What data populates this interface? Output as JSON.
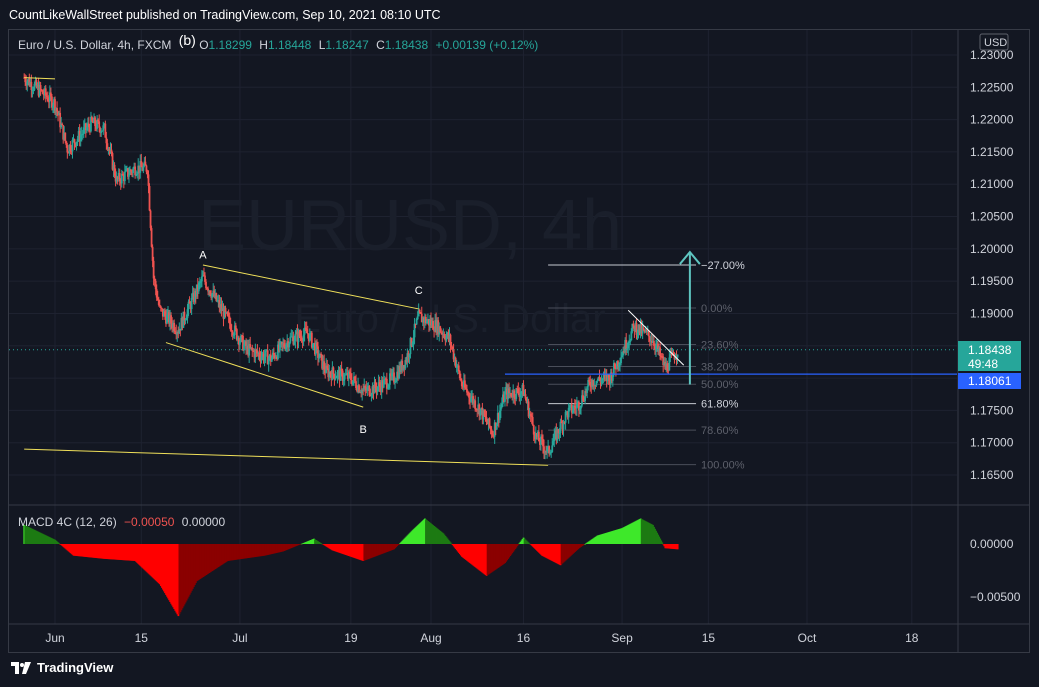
{
  "publisher_line": "CountLikeWallStreet published on TradingView.com, Sep 10, 2021 08:10 UTC",
  "legend": {
    "symbol": "Euro / U.S. Dollar, 4h, FXCM",
    "open_label": "O",
    "open": "1.18299",
    "high_label": "H",
    "high": "1.18448",
    "low_label": "L",
    "low": "1.18247",
    "close_label": "C",
    "close": "1.18438",
    "change": "+0.00139 (+0.12%)",
    "wave_label": "(b)"
  },
  "watermark": {
    "line1": "EURUSD, 4h",
    "line2": "Euro / U.S. Dollar"
  },
  "currency": "USD",
  "price_tags": {
    "last": "1.18438",
    "countdown": "49:48",
    "hline": "1.18061"
  },
  "macd_legend": {
    "name": "MACD 4C (12, 26)",
    "value1": "−0.00050",
    "value2": "0.00000"
  },
  "footer": {
    "brand": "TradingView"
  },
  "colors": {
    "up": "#26a69a",
    "down": "#ef5350",
    "trend": "#f0e05a",
    "hline": "#2962ff",
    "arrow": "#5ec5c0",
    "macd_bright_green": "#3ee82a",
    "macd_dark_green": "#1d7a12",
    "macd_bright_red": "#ff0000",
    "macd_dark_red": "#8b0000"
  },
  "chart_data": {
    "type": "candlestick",
    "title": "EURUSD, 4h",
    "ylim": [
      1.1625,
      1.2325
    ],
    "y_ticks": [
      "1.16500",
      "1.17000",
      "1.17500",
      "1.18000",
      "1.18500",
      "1.19000",
      "1.19500",
      "1.20000",
      "1.20500",
      "1.21000",
      "1.21500",
      "1.22000",
      "1.22500",
      "1.23000"
    ],
    "x_ticks": [
      "Jun",
      "15",
      "Jul",
      "19",
      "Aug",
      "16",
      "Sep",
      "15",
      "Oct",
      "18"
    ],
    "price_path": [
      {
        "date": "May 27",
        "price": 1.2265
      },
      {
        "date": "Jun 1",
        "price": 1.2225
      },
      {
        "date": "Jun 3",
        "price": 1.2155
      },
      {
        "date": "Jun 7",
        "price": 1.2195
      },
      {
        "date": "Jun 9",
        "price": 1.2185
      },
      {
        "date": "Jun 11",
        "price": 1.2105
      },
      {
        "date": "Jun 14",
        "price": 1.2125
      },
      {
        "date": "Jun 16",
        "price": 1.2125
      },
      {
        "date": "Jun 17",
        "price": 1.1955
      },
      {
        "date": "Jun 18",
        "price": 1.1905
      },
      {
        "date": "Jun 21",
        "price": 1.1875
      },
      {
        "date": "Jun 25",
        "price": 1.1955
      },
      {
        "date": "Jun 29",
        "price": 1.189
      },
      {
        "date": "Jul 2",
        "price": 1.1845
      },
      {
        "date": "Jul 6",
        "price": 1.183
      },
      {
        "date": "Jul 9",
        "price": 1.186
      },
      {
        "date": "Jul 12",
        "price": 1.187
      },
      {
        "date": "Jul 15",
        "price": 1.181
      },
      {
        "date": "Jul 19",
        "price": 1.18
      },
      {
        "date": "Jul 21",
        "price": 1.178
      },
      {
        "date": "Jul 23",
        "price": 1.1785
      },
      {
        "date": "Jul 26",
        "price": 1.18
      },
      {
        "date": "Jul 28",
        "price": 1.183
      },
      {
        "date": "Jul 30",
        "price": 1.1895
      },
      {
        "date": "Aug 2",
        "price": 1.188
      },
      {
        "date": "Aug 4",
        "price": 1.186
      },
      {
        "date": "Aug 6",
        "price": 1.179
      },
      {
        "date": "Aug 9",
        "price": 1.175
      },
      {
        "date": "Aug 11",
        "price": 1.1715
      },
      {
        "date": "Aug 13",
        "price": 1.1775
      },
      {
        "date": "Aug 16",
        "price": 1.178
      },
      {
        "date": "Aug 18",
        "price": 1.171
      },
      {
        "date": "Aug 20",
        "price": 1.1685
      },
      {
        "date": "Aug 23",
        "price": 1.1745
      },
      {
        "date": "Aug 25",
        "price": 1.176
      },
      {
        "date": "Aug 27",
        "price": 1.1795
      },
      {
        "date": "Aug 30",
        "price": 1.18
      },
      {
        "date": "Sep 1",
        "price": 1.184
      },
      {
        "date": "Sep 3",
        "price": 1.188
      },
      {
        "date": "Sep 6",
        "price": 1.186
      },
      {
        "date": "Sep 8",
        "price": 1.1815
      },
      {
        "date": "Sep 10",
        "price": 1.1844
      }
    ],
    "wave_labels": [
      {
        "label": "A",
        "date": "Jun 25",
        "price": 1.1985
      },
      {
        "label": "B",
        "date": "Jul 21",
        "price": 1.1715
      },
      {
        "label": "C",
        "date": "Jul 30",
        "price": 1.193
      }
    ],
    "fibonacci": [
      {
        "label": "−27.00%",
        "price": 1.1975
      },
      {
        "label": "0.00%",
        "price": 1.19085
      },
      {
        "label": "23.60%",
        "price": 1.1852
      },
      {
        "label": "38.20%",
        "price": 1.1818
      },
      {
        "label": "50.00%",
        "price": 1.17905
      },
      {
        "label": "61.80%",
        "price": 1.17605
      },
      {
        "label": "78.60%",
        "price": 1.17195
      },
      {
        "label": "100.00%",
        "price": 1.1666
      }
    ],
    "horizontal_line": 1.18061,
    "last_price": 1.18438,
    "macd": {
      "y_ticks": [
        "0.00000",
        "−0.00500"
      ],
      "ylim": [
        -0.0075,
        0.0025
      ],
      "hist": [
        {
          "date": "May 27",
          "value": 0.0018
        },
        {
          "date": "Jun 1",
          "value": 0.0004
        },
        {
          "date": "Jun 4",
          "value": -0.0011
        },
        {
          "date": "Jun 9",
          "value": -0.0014
        },
        {
          "date": "Jun 14",
          "value": -0.0016
        },
        {
          "date": "Jun 18",
          "value": -0.0038
        },
        {
          "date": "Jun 21",
          "value": -0.0068
        },
        {
          "date": "Jun 24",
          "value": -0.0035
        },
        {
          "date": "Jun 29",
          "value": -0.0016
        },
        {
          "date": "Jul 5",
          "value": -0.0011
        },
        {
          "date": "Jul 8",
          "value": -0.0007
        },
        {
          "date": "Jul 13",
          "value": 0.0005
        },
        {
          "date": "Jul 16",
          "value": -0.0006
        },
        {
          "date": "Jul 21",
          "value": -0.0016
        },
        {
          "date": "Jul 26",
          "value": -0.0005
        },
        {
          "date": "Jul 29",
          "value": 0.0013
        },
        {
          "date": "Jul 31",
          "value": 0.0024
        },
        {
          "date": "Aug 3",
          "value": 0.001
        },
        {
          "date": "Aug 6",
          "value": -0.0012
        },
        {
          "date": "Aug 10",
          "value": -0.003
        },
        {
          "date": "Aug 13",
          "value": -0.0018
        },
        {
          "date": "Aug 16",
          "value": 0.0006
        },
        {
          "date": "Aug 19",
          "value": -0.0011
        },
        {
          "date": "Aug 22",
          "value": -0.002
        },
        {
          "date": "Aug 25",
          "value": -0.0004
        },
        {
          "date": "Aug 28",
          "value": 0.0008
        },
        {
          "date": "Sep 1",
          "value": 0.0015
        },
        {
          "date": "Sep 4",
          "value": 0.0024
        },
        {
          "date": "Sep 6",
          "value": 0.0018
        },
        {
          "date": "Sep 8",
          "value": -0.0004
        },
        {
          "date": "Sep 10",
          "value": -0.0005
        }
      ]
    }
  }
}
